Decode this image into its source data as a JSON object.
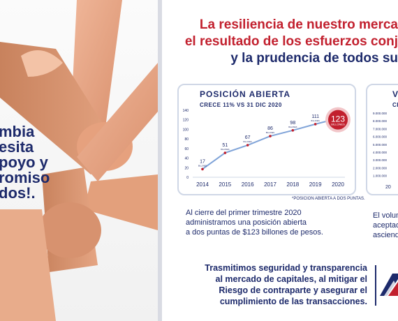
{
  "left_panel": {
    "lines": [
      "mbia",
      "esita",
      "poyo y",
      "romiso",
      "dos!."
    ]
  },
  "headline": {
    "line1": "La resiliencia de nuestro merca",
    "line2": "el resultado de los esfuerzos conj",
    "line3": "y la prudencia de todos su"
  },
  "card1": {
    "title": "POSICIÓN ABIERTA",
    "subtitle": "CRECE 11% VS 31 DIC 2020",
    "footnote": "*POSICION ABIERTA A DOS PUNTAS."
  },
  "card2": {
    "title": "V",
    "subtitle": "CRE",
    "tick_labels": [
      "9.000.000",
      "8.000.000",
      "7.000.000",
      "6.000.000",
      "5.000.000",
      "4.000.000",
      "3.000.000",
      "2.000.000",
      "1.000.000"
    ],
    "x_label": "20"
  },
  "chart_data": {
    "type": "line",
    "title": "POSICIÓN ABIERTA",
    "subtitle": "CRECE 11% VS 31 DIC 2020",
    "categories": [
      "2014",
      "2015",
      "2016",
      "2017",
      "2018",
      "2019",
      "2020"
    ],
    "values": [
      17,
      51,
      67,
      86,
      98,
      111,
      123
    ],
    "point_unit": "BILLONES",
    "highlight": {
      "value": "123",
      "unit": "BILLONES"
    },
    "y_ticks": [
      "0",
      "20",
      "40",
      "60",
      "80",
      "100",
      "120",
      "140"
    ],
    "ylim": [
      0,
      140
    ],
    "colors": {
      "line": "#7fa3d8",
      "point": "#c2202e",
      "highlight": "#c2202e"
    }
  },
  "para1": {
    "lines": [
      "Al cierre del primer trimestre 2020",
      "administramos una posición abierta",
      "a dos puntas de $123 billones de pesos."
    ]
  },
  "para2": {
    "lines": [
      "El volum",
      "aceptad",
      "asciend"
    ]
  },
  "para3": {
    "lines": [
      "Trasmitimos seguridad y transparencia",
      "al mercado de capitales, al mitigar el",
      "Riesgo de contraparte y asegurar el",
      "cumplimiento de las transacciones."
    ]
  },
  "colors": {
    "navy": "#1d2a6b",
    "red": "#c2202e",
    "card_border": "#cfd7e6"
  }
}
